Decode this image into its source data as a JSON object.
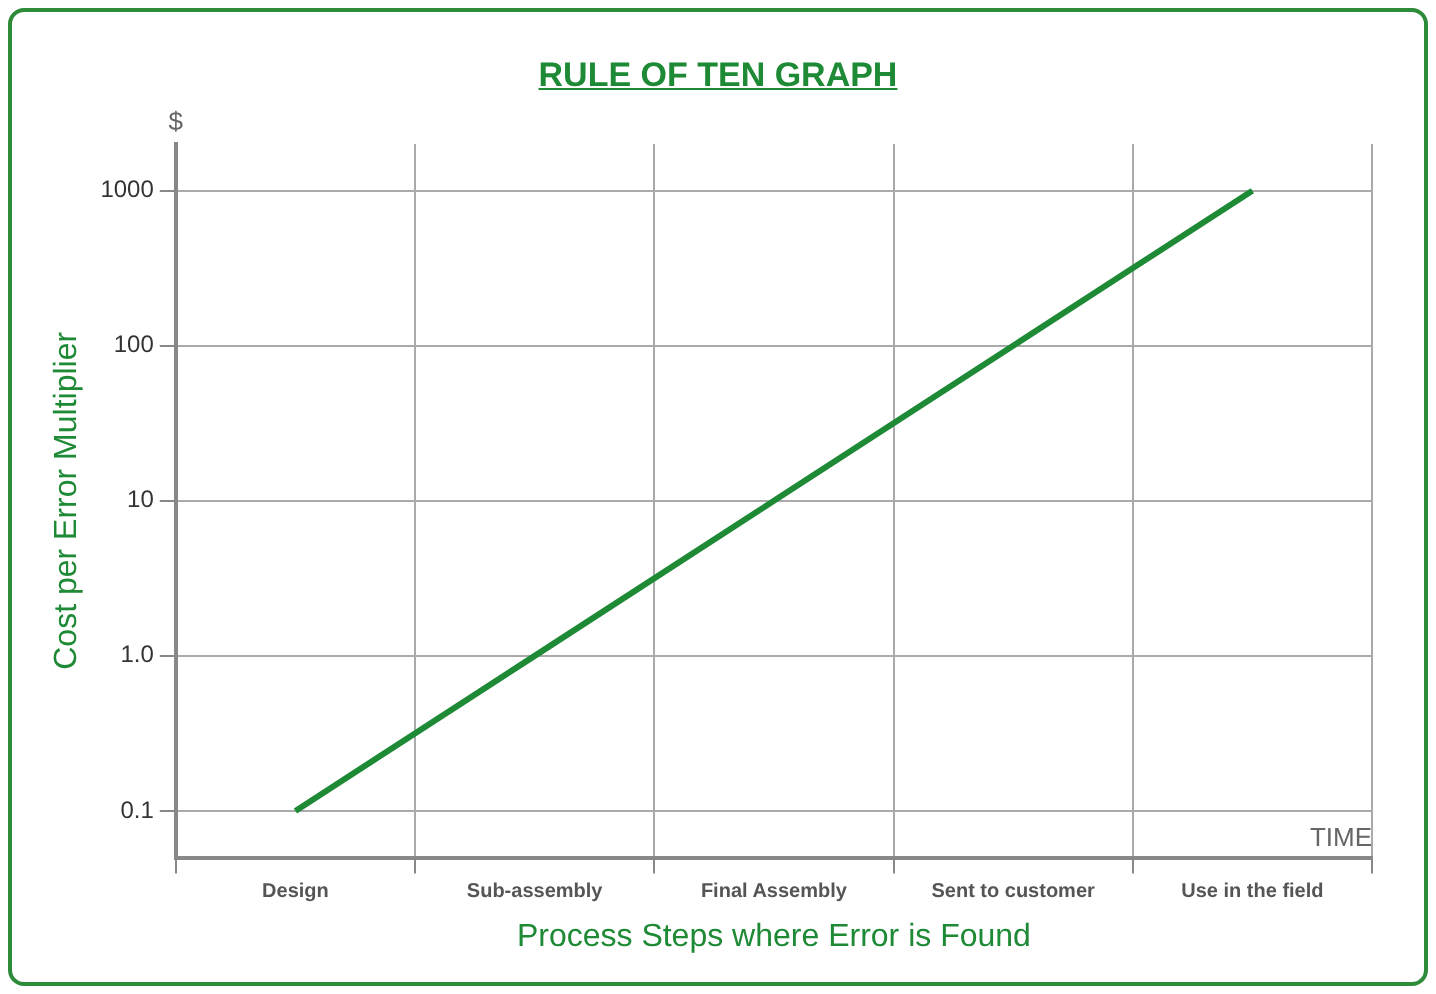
{
  "chart_data": {
    "type": "line",
    "title": "RULE OF TEN GRAPH",
    "xlabel": "Process Steps where Error is Found",
    "ylabel": "Cost per Error Multiplier",
    "annotations": [
      "$",
      "TIME"
    ],
    "categories": [
      "Design",
      "Sub-assembly",
      "Final Assembly",
      "Sent to customer",
      "Use in the field"
    ],
    "series": [
      {
        "color": "#1e8a36",
        "values": [
          0.1,
          1,
          10,
          100,
          1000
        ]
      }
    ],
    "log": true,
    "ylim": [
      0.05,
      2000
    ],
    "yticks": [
      {
        "value": 0.1,
        "label": "0.1"
      },
      {
        "value": 1,
        "label": "1.0"
      },
      10,
      100,
      1000
    ],
    "grid": true,
    "legend": false,
    "marker": "none",
    "line_style": "solid"
  }
}
